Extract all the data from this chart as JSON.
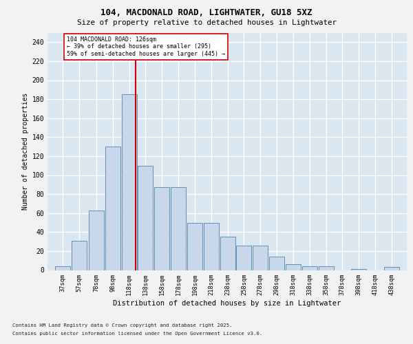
{
  "title1": "104, MACDONALD ROAD, LIGHTWATER, GU18 5XZ",
  "title2": "Size of property relative to detached houses in Lightwater",
  "xlabel": "Distribution of detached houses by size in Lightwater",
  "ylabel": "Number of detached properties",
  "bar_centers": [
    37,
    57,
    78,
    98,
    118,
    138,
    158,
    178,
    198,
    218,
    238,
    258,
    278,
    298,
    318,
    338,
    358,
    378,
    398,
    418,
    438
  ],
  "bar_labels": [
    "37sqm",
    "57sqm",
    "78sqm",
    "98sqm",
    "118sqm",
    "138sqm",
    "158sqm",
    "178sqm",
    "198sqm",
    "218sqm",
    "238sqm",
    "258sqm",
    "278sqm",
    "298sqm",
    "318sqm",
    "338sqm",
    "358sqm",
    "378sqm",
    "398sqm",
    "418sqm",
    "438sqm"
  ],
  "bar_heights": [
    4,
    31,
    63,
    130,
    185,
    110,
    87,
    87,
    50,
    50,
    35,
    26,
    26,
    14,
    6,
    4,
    4,
    0,
    1,
    0,
    3
  ],
  "bar_width": 18.5,
  "bar_color": "#c8d8ea",
  "bar_edge_color": "#6090b8",
  "vline_x": 126,
  "vline_color": "#cc0000",
  "annotation_line1": "104 MACDONALD ROAD: 126sqm",
  "annotation_line2": "← 39% of detached houses are smaller (295)",
  "annotation_line3": "59% of semi-detached houses are larger (445) →",
  "annotation_box_color": "#ffffff",
  "annotation_box_edge": "#cc0000",
  "ylim_max": 250,
  "yticks": [
    0,
    20,
    40,
    60,
    80,
    100,
    120,
    140,
    160,
    180,
    200,
    220,
    240
  ],
  "plot_bg": "#dae6f0",
  "grid_color": "#ffffff",
  "fig_bg": "#f0f2f4",
  "footer1": "Contains HM Land Registry data © Crown copyright and database right 2025.",
  "footer2": "Contains public sector information licensed under the Open Government Licence v3.0."
}
